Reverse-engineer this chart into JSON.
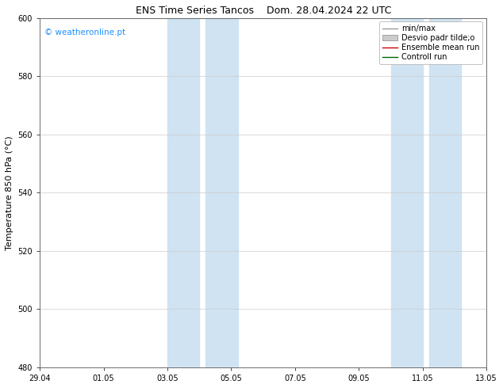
{
  "title_left": "ENS Time Series Tancos",
  "title_right": "Dom. 28.04.2024 22 UTC",
  "ylabel": "Temperature 850 hPa (°C)",
  "ylim": [
    480,
    600
  ],
  "yticks": [
    480,
    500,
    520,
    540,
    560,
    580,
    600
  ],
  "xtick_labels": [
    "29.04",
    "01.05",
    "03.05",
    "05.05",
    "07.05",
    "09.05",
    "11.05",
    "13.05"
  ],
  "xtick_positions": [
    0,
    2,
    4,
    6,
    8,
    10,
    12,
    14
  ],
  "shade_bands": [
    [
      4.0,
      5.0,
      "#cfe3f2"
    ],
    [
      5.2,
      6.2,
      "#cfe3f2"
    ],
    [
      11.0,
      12.0,
      "#cfe3f2"
    ],
    [
      12.2,
      13.2,
      "#cfe3f2"
    ]
  ],
  "background_color": "#ffffff",
  "watermark": "© weatheronline.pt",
  "watermark_color": "#1e90ff",
  "legend_items": [
    {
      "label": "min/max",
      "color": "#999999",
      "lw": 1.0,
      "ls": "-",
      "type": "line"
    },
    {
      "label": "Desvio padr tilde;o",
      "color": "#cccccc",
      "type": "box"
    },
    {
      "label": "Ensemble mean run",
      "color": "#cc0000",
      "lw": 1.0,
      "ls": "-",
      "type": "line"
    },
    {
      "label": "Controll run",
      "color": "#006600",
      "lw": 1.0,
      "ls": "-",
      "type": "line"
    }
  ],
  "grid_color": "#cccccc",
  "title_fontsize": 9,
  "tick_fontsize": 7,
  "ylabel_fontsize": 8,
  "legend_fontsize": 7
}
